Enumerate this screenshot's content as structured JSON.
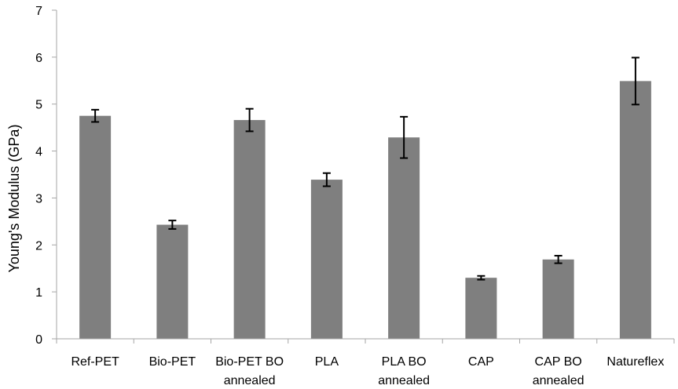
{
  "chart_data": {
    "type": "bar",
    "title": "",
    "xlabel": "",
    "ylabel": "Young's Modulus (GPa)",
    "ylim": [
      0,
      7
    ],
    "yticks": [
      0,
      1,
      2,
      3,
      4,
      5,
      6,
      7
    ],
    "grid": false,
    "legend": "none",
    "categories": [
      [
        "Ref-PET"
      ],
      [
        "Bio-PET"
      ],
      [
        "Bio-PET BO",
        "annealed"
      ],
      [
        "PLA"
      ],
      [
        "PLA BO",
        "annealed"
      ],
      [
        "CAP"
      ],
      [
        "CAP BO",
        "annealed"
      ],
      [
        "Natureflex"
      ]
    ],
    "series": [
      {
        "values": [
          4.75,
          2.43,
          4.66,
          3.39,
          4.29,
          1.3,
          1.69,
          5.49
        ],
        "error": [
          0.13,
          0.09,
          0.24,
          0.14,
          0.44,
          0.04,
          0.08,
          0.5
        ],
        "color": "#7f7f7f"
      }
    ],
    "axis_color": "#a6a6a6",
    "error_color": "#000000"
  }
}
